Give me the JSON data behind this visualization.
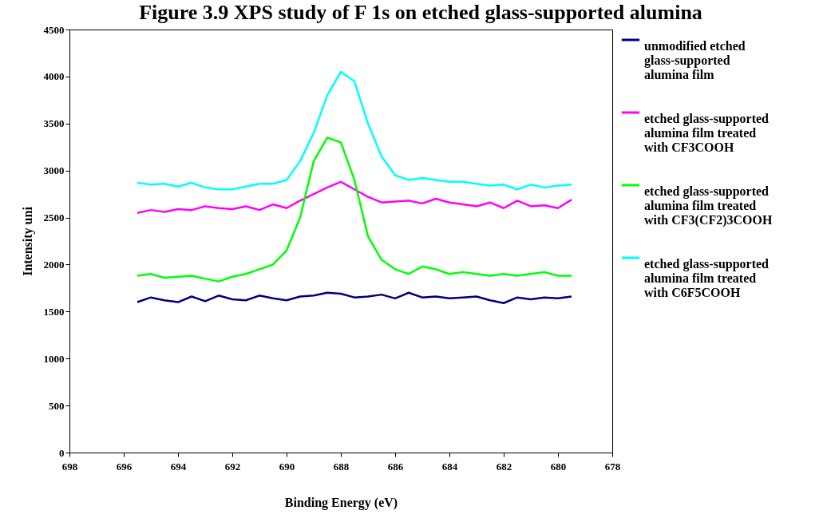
{
  "chart_data": {
    "type": "line",
    "title": "Figure 3.9 XPS study of F 1s on etched glass-supported alumina",
    "xlabel": "Binding Energy (eV)",
    "ylabel": "Intensity uni",
    "x": [
      695.5,
      695,
      694.5,
      694,
      693.5,
      693,
      692.5,
      692,
      691.5,
      691,
      690.5,
      690,
      689.5,
      689,
      688.5,
      688,
      687.5,
      687,
      686.5,
      686,
      685.5,
      685,
      684.5,
      684,
      683.5,
      683,
      682.5,
      682,
      681.5,
      681,
      680.5,
      680,
      679.5
    ],
    "series": [
      {
        "name": "unmodified etched glass-supported alumina film",
        "color": "#000080",
        "values": [
          1600,
          1650,
          1620,
          1600,
          1660,
          1610,
          1670,
          1630,
          1620,
          1670,
          1640,
          1620,
          1660,
          1670,
          1700,
          1690,
          1650,
          1660,
          1680,
          1640,
          1700,
          1650,
          1660,
          1640,
          1650,
          1660,
          1620,
          1590,
          1650,
          1630,
          1650,
          1640,
          1660
        ]
      },
      {
        "name": "etched glass-supported alumina film treated with CF3COOH",
        "color": "#ff00ff",
        "values": [
          2550,
          2580,
          2560,
          2590,
          2580,
          2620,
          2600,
          2590,
          2620,
          2580,
          2640,
          2600,
          2680,
          2750,
          2820,
          2880,
          2800,
          2720,
          2660,
          2670,
          2680,
          2650,
          2700,
          2660,
          2640,
          2620,
          2660,
          2600,
          2680,
          2620,
          2630,
          2600,
          2690
        ]
      },
      {
        "name": "etched glass-supported alumina film treated with CF3(CF2)3COOH",
        "color": "#00ff00",
        "values": [
          1880,
          1900,
          1860,
          1870,
          1880,
          1850,
          1820,
          1870,
          1900,
          1950,
          2000,
          2150,
          2500,
          3100,
          3350,
          3300,
          2900,
          2300,
          2050,
          1950,
          1900,
          1980,
          1950,
          1900,
          1920,
          1900,
          1880,
          1900,
          1880,
          1900,
          1920,
          1880,
          1880
        ]
      },
      {
        "name": "etched glass-supported alumina film treated with C6F5COOH",
        "color": "#00ffff",
        "values": [
          2870,
          2850,
          2860,
          2830,
          2870,
          2820,
          2800,
          2800,
          2830,
          2860,
          2860,
          2900,
          3100,
          3400,
          3800,
          4050,
          3950,
          3500,
          3150,
          2950,
          2900,
          2920,
          2900,
          2880,
          2880,
          2860,
          2840,
          2850,
          2800,
          2850,
          2820,
          2840,
          2850
        ]
      }
    ],
    "xlim": [
      698,
      678
    ],
    "xticks": [
      698,
      696,
      694,
      692,
      690,
      688,
      686,
      684,
      682,
      680,
      678
    ],
    "ylim": [
      0,
      4500
    ],
    "yticks": [
      0,
      500,
      1000,
      1500,
      2000,
      2500,
      3000,
      3500,
      4000,
      4500
    ],
    "legend": "right"
  }
}
